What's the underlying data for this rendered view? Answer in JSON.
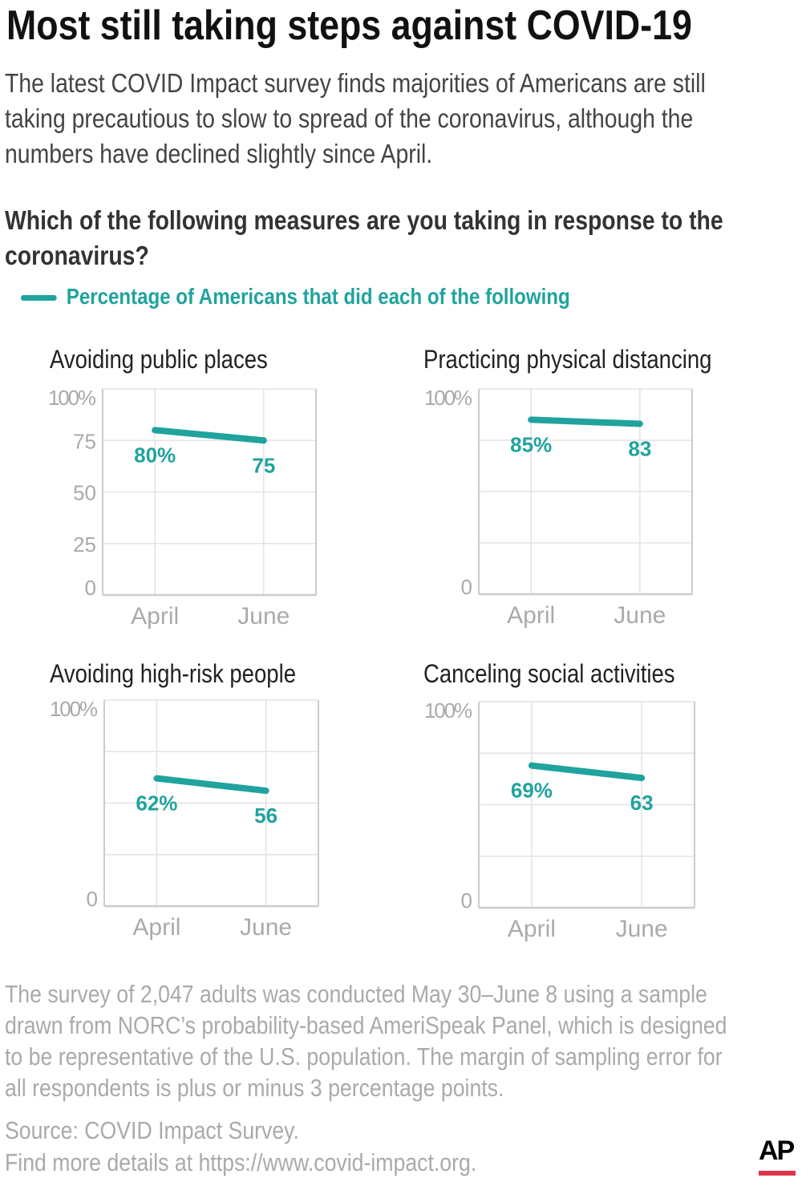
{
  "header": {
    "title": "Most still taking steps against COVID-19",
    "subtitle_lines": [
      "The latest COVID Impact survey finds majorities of Americans are still",
      "taking precautious to slow to spread of the coronavirus, although the",
      "numbers have declined slightly since April."
    ],
    "question_lines": [
      "Which of the following measures are you taking in response to the",
      "coronavirus?"
    ],
    "legend": "Percentage of Americans that did each of the following"
  },
  "colors": {
    "line": "#20a39e",
    "grid": "#e3e3e3",
    "axis": "#cccccc",
    "tick": "#aaaaaa"
  },
  "chart_data": [
    {
      "type": "line",
      "title": "Avoiding public places",
      "categories": [
        "April",
        "June"
      ],
      "values": [
        80,
        75
      ],
      "labels": [
        "80%",
        "75"
      ],
      "ylim": [
        0,
        100
      ],
      "yticks": [
        "0",
        "25",
        "50",
        "75",
        "100%"
      ],
      "ytick_values": [
        0,
        25,
        50,
        75,
        100
      ]
    },
    {
      "type": "line",
      "title": "Practicing physical distancing",
      "categories": [
        "April",
        "June"
      ],
      "values": [
        85,
        83
      ],
      "labels": [
        "85%",
        "83"
      ],
      "ylim": [
        0,
        100
      ],
      "yticks": [
        "0",
        "100%"
      ],
      "ytick_values": [
        0,
        100
      ]
    },
    {
      "type": "line",
      "title": "Avoiding high-risk people",
      "categories": [
        "April",
        "June"
      ],
      "values": [
        62,
        56
      ],
      "labels": [
        "62%",
        "56"
      ],
      "ylim": [
        0,
        100
      ],
      "yticks": [
        "0",
        "100%"
      ],
      "ytick_values": [
        0,
        100
      ]
    },
    {
      "type": "line",
      "title": "Canceling social activities",
      "categories": [
        "April",
        "June"
      ],
      "values": [
        69,
        63
      ],
      "labels": [
        "69%",
        "63"
      ],
      "ylim": [
        0,
        100
      ],
      "yticks": [
        "0",
        "100%"
      ],
      "ytick_values": [
        0,
        100
      ]
    }
  ],
  "footer": {
    "note_lines": [
      "The survey of 2,047 adults was conducted May 30–June 8 using a sample",
      "drawn from NORC’s probability-based AmeriSpeak Panel, which is designed",
      "to be representative of the U.S. population. The margin of sampling error for",
      "all respondents is plus or minus 3 percentage points."
    ],
    "source": "Source: COVID Impact Survey.",
    "details": "Find more details at https://www.covid-impact.org.",
    "logo": "AP"
  }
}
